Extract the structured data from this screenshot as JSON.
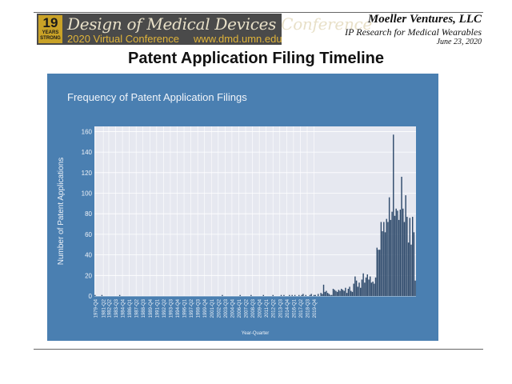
{
  "header": {
    "logo": {
      "years_number": "19",
      "years_label": "YEARS",
      "years_strong": "STRONG",
      "title": "Design of Medical Devices Conference",
      "subtitle": "2020 Virtual Conference",
      "url": "www.dmd.umn.edu"
    },
    "company": "Moeller Ventures, LLC",
    "tagline": "IP Research for Medical Wearables",
    "date": "June 23, 2020"
  },
  "slide_title": "Patent Application Filing Timeline",
  "colors": {
    "panel": "#4a7fb1",
    "plot_bg": "#e6e8f0",
    "bar": "#2e4a6b",
    "grid": "#ffffff"
  },
  "chart_data": {
    "type": "bar",
    "title": "Frequency of Patent Application Filings",
    "xlabel": "Year-Quarter",
    "ylabel": "Number of Patent Applications",
    "ylim": [
      0,
      165
    ],
    "yticks": [
      0,
      20,
      40,
      60,
      80,
      100,
      120,
      140,
      160
    ],
    "x_tick_labels": [
      "1979-Q4",
      "1981-Q2",
      "1982-Q2",
      "1983-Q3",
      "1984-Q4",
      "1986-Q1",
      "1987-Q2",
      "1988-Q3",
      "1989-Q4",
      "1991-Q1",
      "1992-Q2",
      "1993-Q3",
      "1994-Q4",
      "1996-Q1",
      "1997-Q2",
      "1998-Q3",
      "1999-Q4",
      "2001-Q1",
      "2002-Q2",
      "2003-Q3",
      "2004-Q4",
      "2006-Q1",
      "2007-Q2",
      "2008-Q3",
      "2009-Q4",
      "2011-Q1",
      "2012-Q2",
      "2013-Q3",
      "2014-Q4",
      "2016-Q1",
      "2017-Q2",
      "2018-Q3",
      "2019-Q4"
    ],
    "grid": true,
    "legend": "none",
    "start_quarter": "1979-Q4",
    "values": [
      1,
      0,
      0,
      0,
      0,
      1,
      0,
      0,
      0,
      0,
      0,
      0,
      0,
      0,
      0,
      0,
      0,
      0,
      1,
      0,
      0,
      0,
      0,
      0,
      0,
      0,
      0,
      0,
      0,
      0,
      0,
      0,
      0,
      0,
      0,
      0,
      0,
      0,
      0,
      0,
      0,
      0,
      0,
      0,
      0,
      0,
      0,
      0,
      0,
      0,
      0,
      0,
      0,
      0,
      0,
      0,
      0,
      0,
      0,
      0,
      0,
      0,
      0,
      0,
      0,
      0,
      0,
      0,
      0,
      0,
      0,
      0,
      0,
      0,
      0,
      0,
      0,
      0,
      0,
      0,
      0,
      0,
      0,
      0,
      0,
      0,
      0,
      0,
      0,
      0,
      0,
      0,
      0,
      1,
      0,
      0,
      0,
      0,
      0,
      0,
      0,
      0,
      0,
      0,
      0,
      0,
      1,
      0,
      0,
      0,
      0,
      0,
      0,
      0,
      1,
      0,
      0,
      0,
      0,
      0,
      0,
      0,
      0,
      1,
      0,
      0,
      0,
      0,
      0,
      0,
      1,
      0,
      0,
      0,
      0,
      0,
      1,
      0,
      1,
      0,
      0,
      0,
      1,
      0,
      1,
      0,
      1,
      0,
      0,
      1,
      0,
      1,
      2,
      0,
      1,
      0,
      0,
      1,
      2,
      0,
      1,
      1,
      0,
      2,
      0,
      3,
      2,
      11,
      4,
      5,
      3,
      2,
      1,
      1,
      7,
      6,
      5,
      4,
      6,
      5,
      7,
      6,
      5,
      8,
      3,
      7,
      9,
      5,
      4,
      12,
      19,
      15,
      9,
      13,
      8,
      16,
      22,
      13,
      18,
      21,
      16,
      19,
      13,
      14,
      12,
      18,
      47,
      45,
      45,
      72,
      63,
      72,
      62,
      75,
      72,
      96,
      74,
      82,
      157,
      78,
      85,
      83,
      74,
      84,
      116,
      85,
      72,
      98,
      77,
      52,
      76,
      50,
      77,
      62,
      15
    ]
  }
}
